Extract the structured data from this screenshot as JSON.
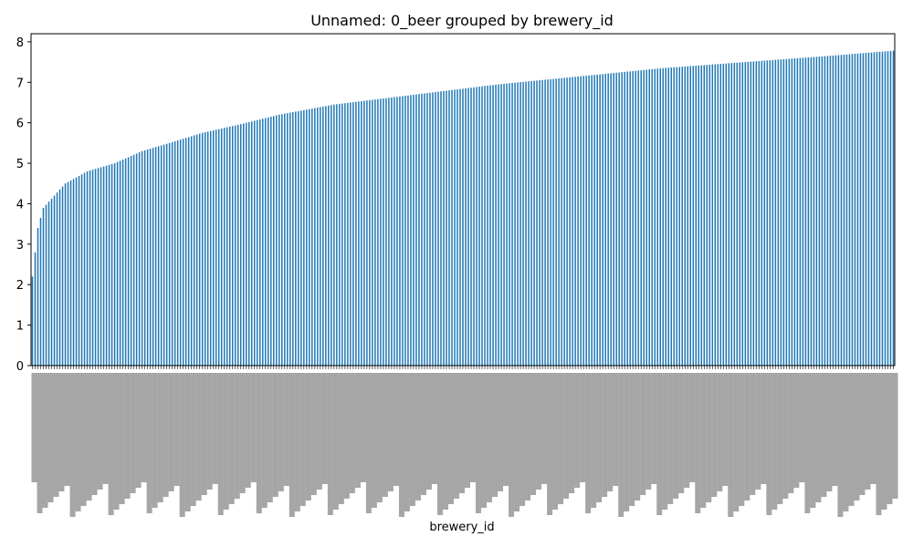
{
  "chart_data": {
    "type": "bar",
    "title": "Unnamed: 0_beer grouped by brewery_id",
    "xlabel": "brewery_id",
    "ylabel": "",
    "ylim": [
      0,
      8.2
    ],
    "yticks": [
      0,
      1,
      2,
      3,
      4,
      5,
      6,
      7,
      8
    ],
    "bar_color": "#1f77b4",
    "bar_count": 315,
    "value_curve": [
      {
        "rank": 0,
        "value": 2.2
      },
      {
        "rank": 2,
        "value": 3.4
      },
      {
        "rank": 4,
        "value": 3.9
      },
      {
        "rank": 8,
        "value": 4.2
      },
      {
        "rank": 12,
        "value": 4.5
      },
      {
        "rank": 20,
        "value": 4.8
      },
      {
        "rank": 30,
        "value": 5.0
      },
      {
        "rank": 40,
        "value": 5.3
      },
      {
        "rank": 50,
        "value": 5.5
      },
      {
        "rank": 62,
        "value": 5.75
      },
      {
        "rank": 75,
        "value": 5.95
      },
      {
        "rank": 90,
        "value": 6.2
      },
      {
        "rank": 110,
        "value": 6.45
      },
      {
        "rank": 140,
        "value": 6.7
      },
      {
        "rank": 170,
        "value": 6.95
      },
      {
        "rank": 200,
        "value": 7.15
      },
      {
        "rank": 230,
        "value": 7.35
      },
      {
        "rank": 260,
        "value": 7.5
      },
      {
        "rank": 290,
        "value": 7.65
      },
      {
        "rank": 314,
        "value": 7.78
      }
    ]
  }
}
